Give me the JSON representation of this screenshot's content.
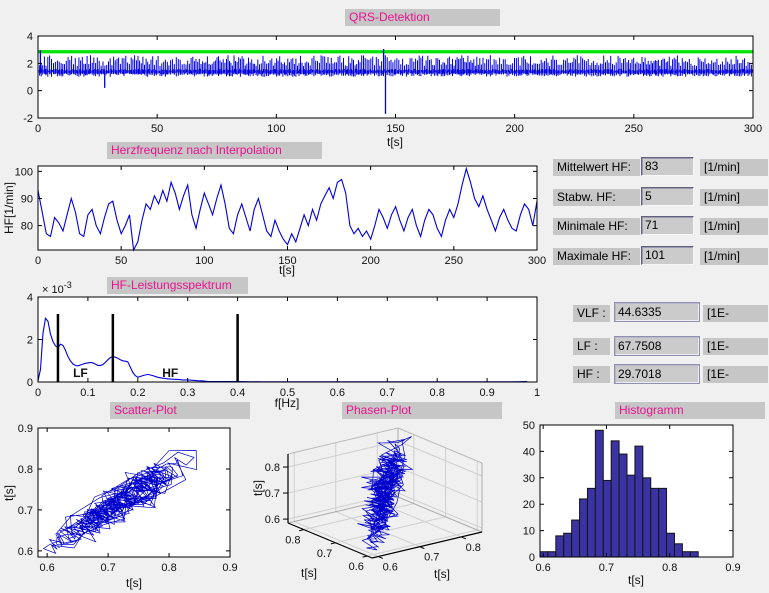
{
  "colors": {
    "window_bg": "#f0f0f0",
    "plot_bg": "#ffffff",
    "title_text": "#ea1390",
    "strip_bg": "#c6c6c6",
    "signal_blue": "#0000dd",
    "threshold_green": "#00e400",
    "band_label_red": "#ff2020",
    "hist_bar": "#3a34a2"
  },
  "titles": {
    "qrs": "QRS-Detektion",
    "hr": "Herzfrequenz nach Interpolation",
    "spectrum": "HF-Leistungsspektrum",
    "scatter": "Scatter-Plot",
    "phase": "Phasen-Plot",
    "histogram": "Histogramm"
  },
  "stats_panel": {
    "rows": [
      {
        "label": "Mittelwert HF:",
        "value": "83",
        "unit": "[1/min]"
      },
      {
        "label": "Stabw. HF:",
        "value": "5",
        "unit": "[1/min]"
      },
      {
        "label": "Minimale HF:",
        "value": "71",
        "unit": "[1/min]"
      },
      {
        "label": "Maximale HF:",
        "value": "101",
        "unit": "[1/min]"
      }
    ]
  },
  "freq_panel": {
    "rows": [
      {
        "label": "VLF :",
        "value": "44.6335",
        "unit": "[1E-"
      },
      {
        "label": "LF :",
        "value": "67.7508",
        "unit": "[1E-"
      },
      {
        "label": "HF :",
        "value": "29.7018",
        "unit": "[1E-"
      }
    ]
  },
  "chart_data": [
    {
      "id": "qrs",
      "type": "line",
      "title": "QRS-Detektion",
      "xlabel": "t[s]",
      "xlim": [
        0,
        300
      ],
      "xticks": [
        0,
        50,
        100,
        150,
        200,
        250,
        300
      ],
      "ylim": [
        -2,
        4
      ],
      "yticks": [
        -2,
        0,
        2,
        4
      ],
      "threshold_line": {
        "y": 2.85,
        "color": "#00e400"
      },
      "signal_color": "#0000dd",
      "baseline": 1.4,
      "beat_peak_range": [
        1.8,
        2.6
      ],
      "artifact_spikes": [
        {
          "t": 1,
          "v": 2.95
        },
        {
          "t": 28,
          "v": 0.2
        },
        {
          "t": 145,
          "v": 3.05
        },
        {
          "t": 145.8,
          "v": -1.7
        }
      ]
    },
    {
      "id": "heart-rate",
      "type": "line",
      "title": "Herzfrequenz nach Interpolation",
      "xlabel": "t[s]",
      "ylabel": "HF[1/min]",
      "xlim": [
        0,
        300
      ],
      "xticks": [
        0,
        50,
        100,
        150,
        200,
        250,
        300
      ],
      "ylim": [
        71,
        102
      ],
      "yticks": [
        80,
        90,
        100
      ],
      "x_start": 0,
      "x_step": 2.5,
      "color": "#0000dd",
      "values": [
        93,
        85,
        77,
        76,
        83,
        81,
        78,
        84,
        90,
        85,
        77,
        76,
        84,
        86,
        80,
        77,
        83,
        88,
        89,
        82,
        77,
        80,
        84,
        71,
        74,
        82,
        88,
        86,
        91,
        88,
        93,
        89,
        96,
        92,
        86,
        91,
        95,
        84,
        79,
        86,
        92,
        88,
        84,
        90,
        95,
        88,
        79,
        77,
        84,
        88,
        83,
        78,
        86,
        90,
        84,
        78,
        76,
        82,
        78,
        75,
        73,
        77,
        74,
        79,
        84,
        80,
        86,
        82,
        88,
        91,
        94,
        90,
        96,
        97,
        92,
        80,
        77,
        79,
        76,
        78,
        75,
        80,
        86,
        83,
        79,
        84,
        87,
        82,
        78,
        83,
        86,
        80,
        76,
        82,
        86,
        84,
        79,
        76,
        82,
        86,
        83,
        88,
        95,
        101,
        96,
        90,
        87,
        91,
        86,
        82,
        78,
        83,
        86,
        82,
        79,
        78,
        84,
        88,
        86,
        80,
        89
      ]
    },
    {
      "id": "spectrum",
      "type": "line",
      "title": "HF-Leistungsspektrum",
      "xlabel": "f[Hz]",
      "xlim": [
        0,
        1
      ],
      "xticks": [
        0,
        0.1,
        0.2,
        0.3,
        0.4,
        0.5,
        0.6,
        0.7,
        0.8,
        0.9,
        1
      ],
      "ylim_e3": [
        0,
        4
      ],
      "yticks": [
        0,
        2,
        4
      ],
      "exp_label": {
        "prefix": "× 10",
        "exponent": "-3"
      },
      "color": "#0000dd",
      "band_lines": {
        "x": [
          0.04,
          0.15,
          0.4
        ],
        "top_e3": 3.2,
        "color": "#000000"
      },
      "band_labels": [
        {
          "text": "LF",
          "x": 0.085,
          "color": "#ff2020"
        },
        {
          "text": "HF",
          "x": 0.265,
          "color": "#ff2020"
        }
      ],
      "points": [
        [
          0,
          0.05
        ],
        [
          0.005,
          0.6
        ],
        [
          0.01,
          2.3
        ],
        [
          0.015,
          3.0
        ],
        [
          0.02,
          2.85
        ],
        [
          0.025,
          2.25
        ],
        [
          0.03,
          1.9
        ],
        [
          0.035,
          1.7
        ],
        [
          0.04,
          1.62
        ],
        [
          0.045,
          1.78
        ],
        [
          0.05,
          1.72
        ],
        [
          0.055,
          1.5
        ],
        [
          0.06,
          1.2
        ],
        [
          0.065,
          1.0
        ],
        [
          0.07,
          0.85
        ],
        [
          0.075,
          0.78
        ],
        [
          0.08,
          0.76
        ],
        [
          0.085,
          0.8
        ],
        [
          0.09,
          0.84
        ],
        [
          0.095,
          0.88
        ],
        [
          0.1,
          0.9
        ],
        [
          0.105,
          0.92
        ],
        [
          0.11,
          0.9
        ],
        [
          0.115,
          0.84
        ],
        [
          0.12,
          0.78
        ],
        [
          0.125,
          0.78
        ],
        [
          0.13,
          0.82
        ],
        [
          0.135,
          0.92
        ],
        [
          0.14,
          1.05
        ],
        [
          0.145,
          1.15
        ],
        [
          0.15,
          1.2
        ],
        [
          0.155,
          1.17
        ],
        [
          0.16,
          1.12
        ],
        [
          0.165,
          1.05
        ],
        [
          0.17,
          1.0
        ],
        [
          0.175,
          0.98
        ],
        [
          0.18,
          0.95
        ],
        [
          0.185,
          0.7
        ],
        [
          0.19,
          0.45
        ],
        [
          0.195,
          0.3
        ],
        [
          0.2,
          0.22
        ],
        [
          0.21,
          0.3
        ],
        [
          0.22,
          0.36
        ],
        [
          0.23,
          0.3
        ],
        [
          0.24,
          0.22
        ],
        [
          0.25,
          0.18
        ],
        [
          0.26,
          0.15
        ],
        [
          0.27,
          0.13
        ],
        [
          0.28,
          0.12
        ],
        [
          0.29,
          0.1
        ],
        [
          0.3,
          0.1
        ],
        [
          0.31,
          0.08
        ],
        [
          0.32,
          0.06
        ],
        [
          0.33,
          0.05
        ],
        [
          0.34,
          0.03
        ],
        [
          0.35,
          0.02
        ],
        [
          0.37,
          0.02
        ],
        [
          0.4,
          0.02
        ],
        [
          0.45,
          0.01
        ],
        [
          0.5,
          0.01
        ],
        [
          0.55,
          0.01
        ],
        [
          0.6,
          0.01
        ],
        [
          0.65,
          0.01
        ],
        [
          0.7,
          0.01
        ],
        [
          0.75,
          0.01
        ],
        [
          0.8,
          0.01
        ],
        [
          0.85,
          0.01
        ],
        [
          0.9,
          0.01
        ],
        [
          0.95,
          0.01
        ],
        [
          0.98,
          0.02
        ]
      ]
    },
    {
      "id": "poincare-scatter",
      "type": "scatter",
      "title": "Scatter-Plot",
      "xlabel": "t[s]",
      "ylabel": "t[s]",
      "xlim": [
        0.585,
        0.9
      ],
      "ylim": [
        0.585,
        0.9
      ],
      "xticks": [
        0.6,
        0.7,
        0.8,
        0.9
      ],
      "yticks": [
        0.6,
        0.7,
        0.8,
        0.9
      ],
      "color": "#0000cc",
      "seed": 7,
      "jitter_s": 0.012,
      "derived_from": "RR intervals of heart-rate series (t_n vs t_n+1)"
    },
    {
      "id": "phase-3d",
      "type": "line3d",
      "title": "Phasen-Plot",
      "xlabel": "t[s]",
      "ylabel": "t[s]",
      "zlabel": "t[s]",
      "lim": [
        0.585,
        0.85
      ],
      "ticks": [
        0.6,
        0.7,
        0.8
      ],
      "color": "#0000cc",
      "derived_from": "RR intervals of heart-rate series (t_n, t_n+1, t_n+2)"
    },
    {
      "id": "rr-histogram",
      "type": "bar",
      "title": "Histogramm",
      "xlabel": "t[s]",
      "bin_start": 0.595,
      "bin_width": 0.0125,
      "counts": [
        2,
        2,
        8,
        9,
        14,
        22,
        26,
        48,
        29,
        44,
        39,
        31,
        42,
        30,
        26,
        26,
        9,
        5,
        2,
        2
      ],
      "xlim": [
        0.595,
        0.9
      ],
      "xticks": [
        0.6,
        0.7,
        0.8,
        0.9
      ],
      "ylim": [
        0,
        50
      ],
      "yticks": [
        0,
        10,
        20,
        30,
        40,
        50
      ],
      "bar_color": "#3a34a2",
      "edge_color": "#141414"
    }
  ]
}
